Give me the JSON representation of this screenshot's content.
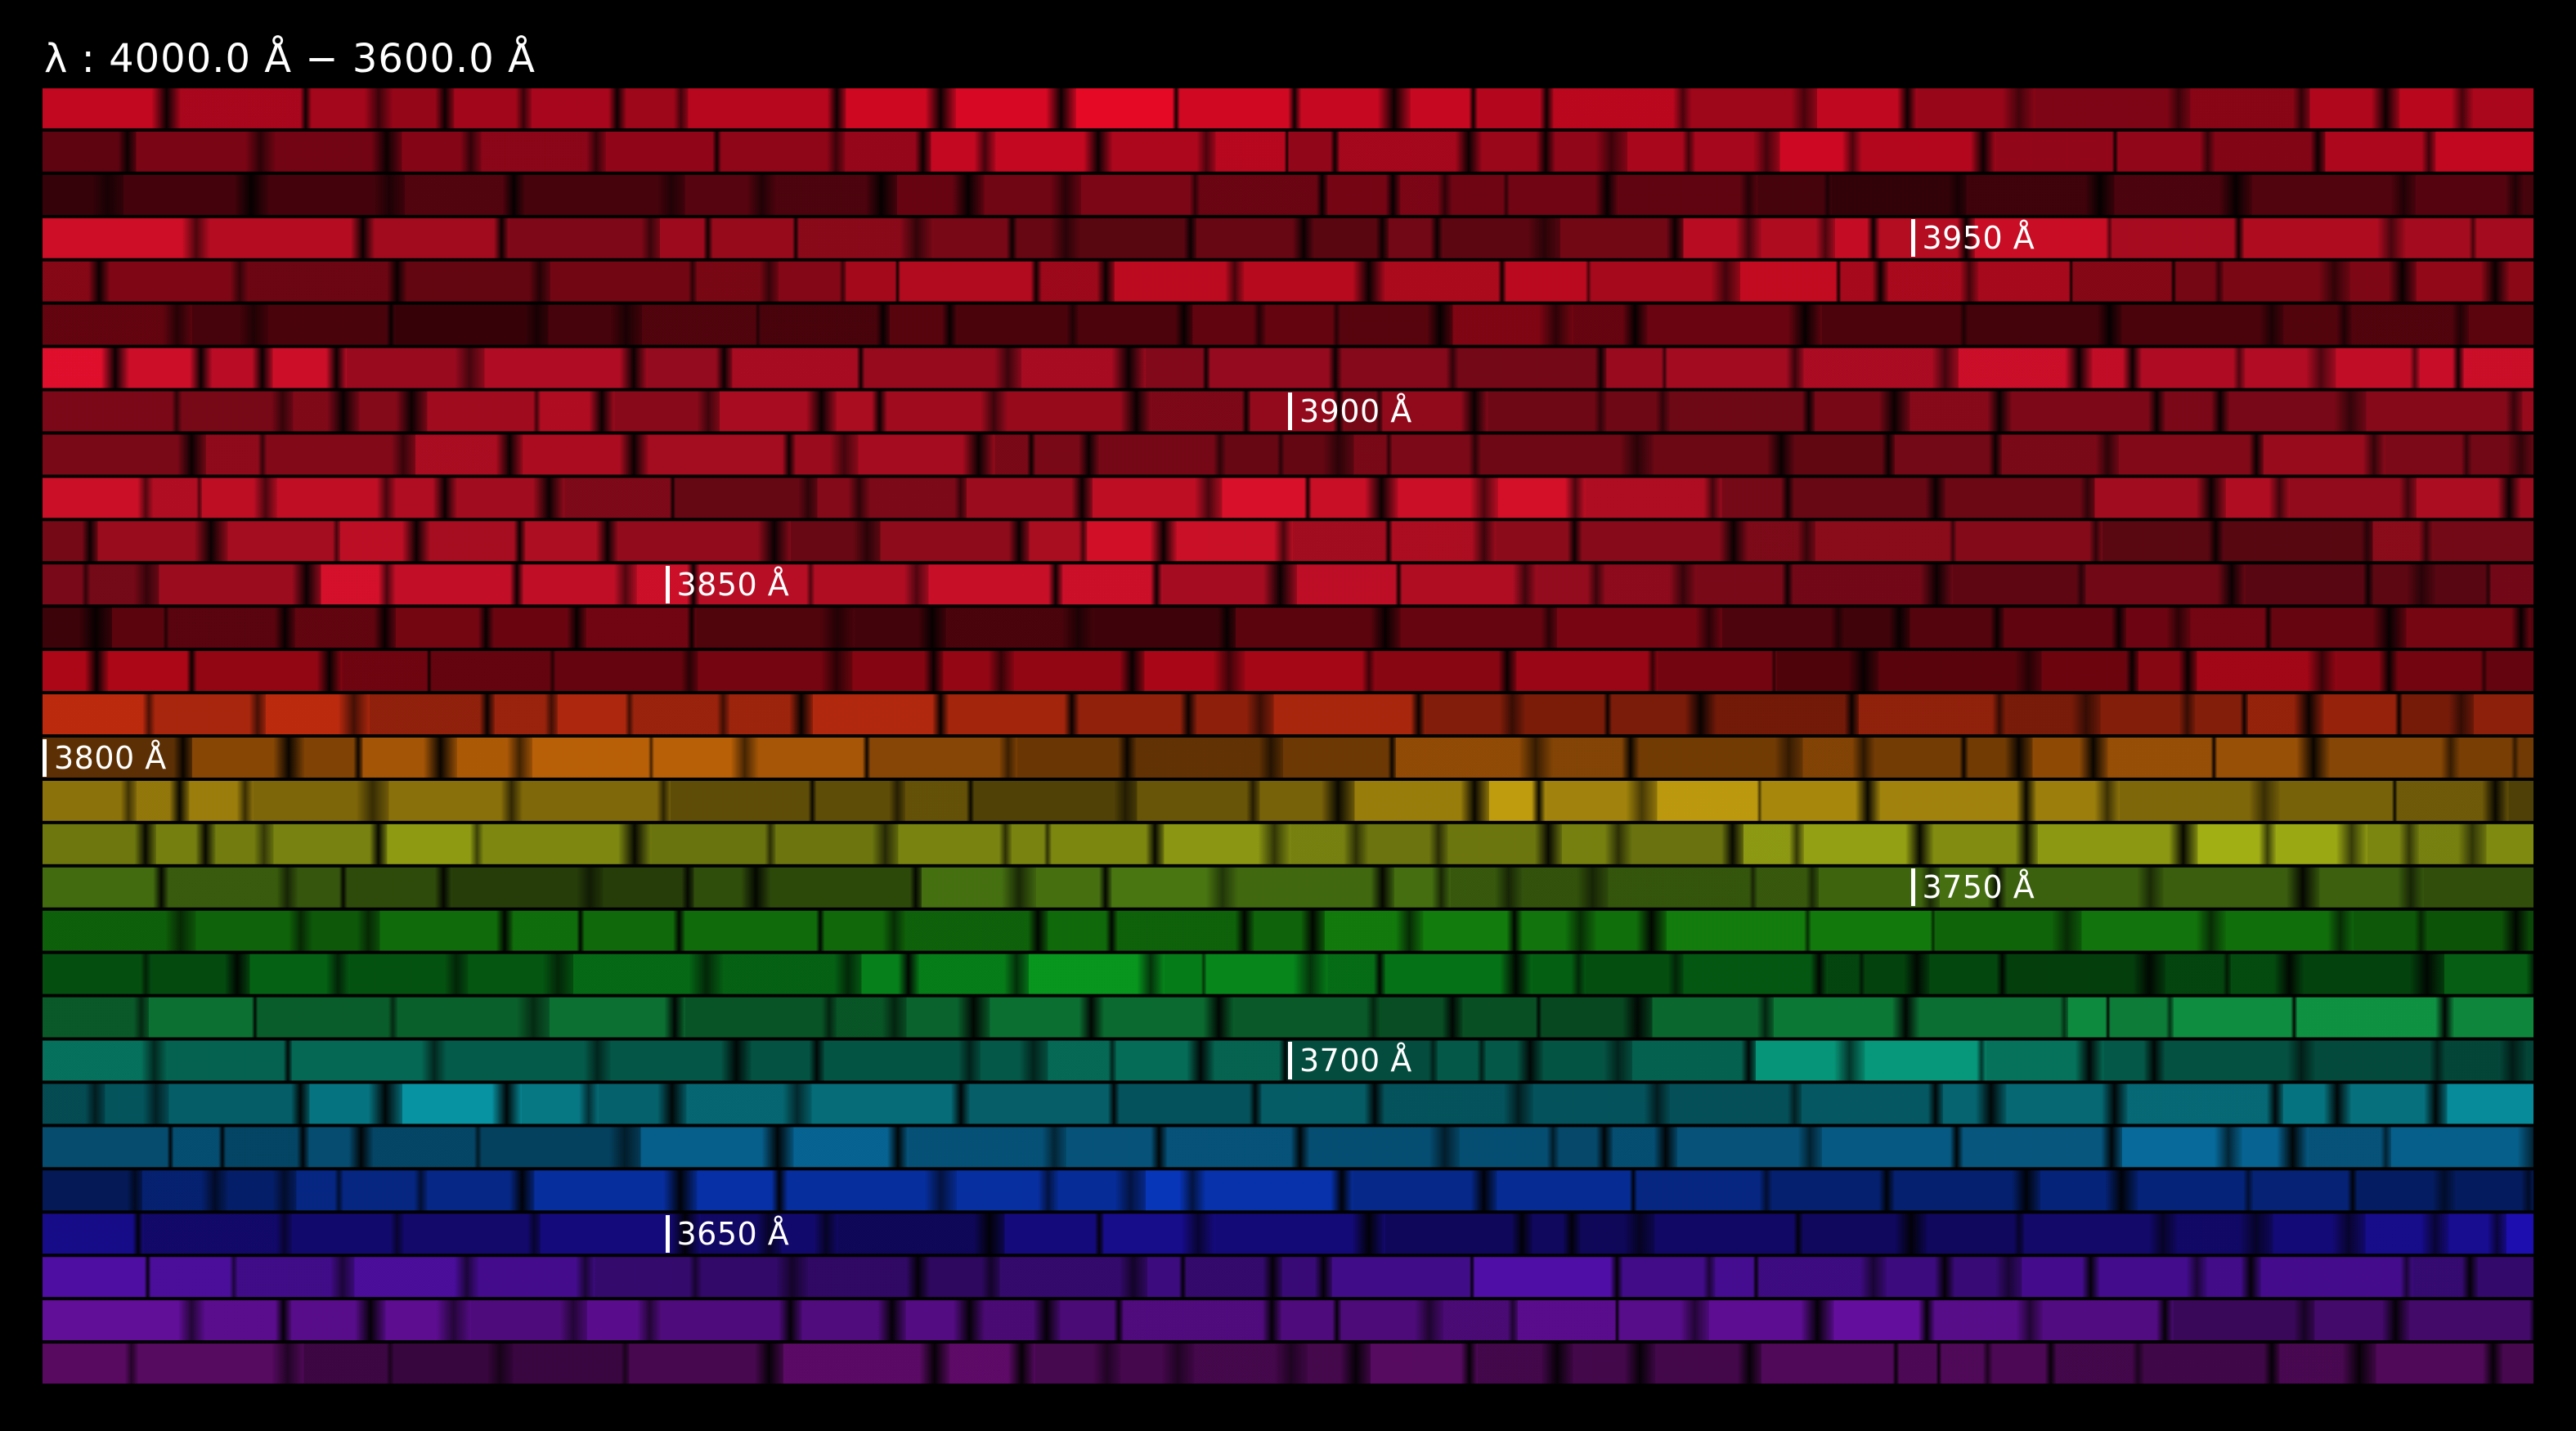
{
  "header": {
    "range_label": "λ : 4000.0 Å − 3600.0 Å"
  },
  "spectrum": {
    "wavelength_start": 4000.0,
    "wavelength_end": 3600.0,
    "unit": "Å",
    "row_count": 30,
    "row_colors": [
      "#ff0a2a",
      "#f80a2a",
      "#8a0618",
      "#f0102c",
      "#d80c24",
      "#900616",
      "#f01030",
      "#e8102c",
      "#e0102a",
      "#f0122e",
      "#e8122c",
      "#f01230",
      "#a8081a",
      "#c0081a",
      "#d43010",
      "#d87008",
      "#d8b010",
      "#b8c818",
      "#68a818",
      "#18a010",
      "#08a020",
      "#10a048",
      "#08a888",
      "#0898a8",
      "#0878b0",
      "#0838c0",
      "#2010c0",
      "#5810b8",
      "#7010b0",
      "#9010a0"
    ],
    "markers": [
      {
        "label": "3950 Å",
        "row": 3
      },
      {
        "label": "3900 Å",
        "row": 7
      },
      {
        "label": "3850 Å",
        "row": 11
      },
      {
        "label": "3800 Å",
        "row": 15
      },
      {
        "label": "3750 Å",
        "row": 18
      },
      {
        "label": "3700 Å",
        "row": 22
      },
      {
        "label": "3650 Å",
        "row": 26
      }
    ]
  }
}
